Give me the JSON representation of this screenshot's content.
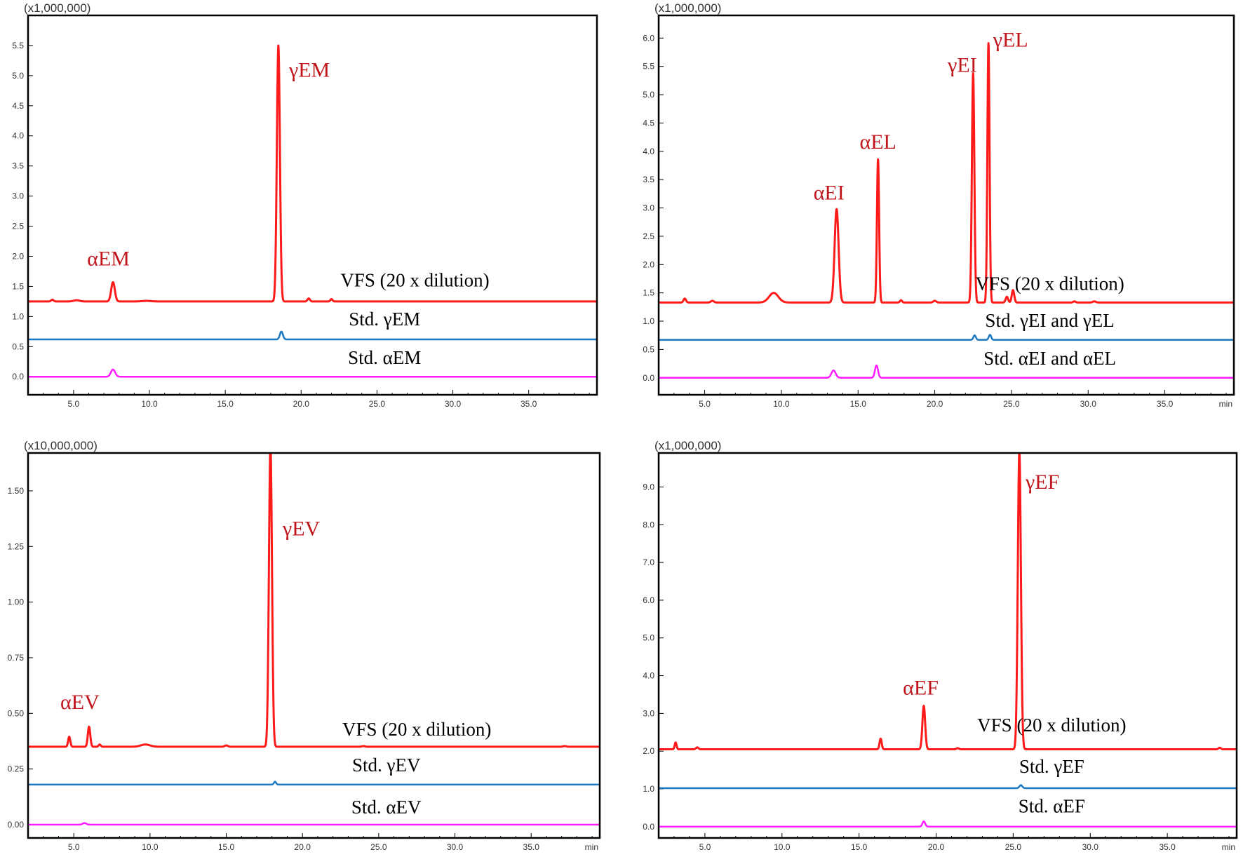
{
  "colors": {
    "vfs": "#ff1a1a",
    "std_gamma": "#1a78c2",
    "std_alpha": "#ff1aff",
    "peak_label": "#c0151b",
    "frame": "#000000"
  },
  "chart_data": [
    {
      "type": "line",
      "panel": "top-left",
      "scale_label": "(x1,000,000)",
      "x_unit": "",
      "xlim": [
        2.0,
        39.5
      ],
      "ylim": [
        -0.3,
        6.0
      ],
      "x_ticks": [
        "5.0",
        "10.0",
        "15.0",
        "20.0",
        "25.0",
        "30.0",
        "35.0"
      ],
      "y_ticks": [
        "0.0",
        "0.5",
        "1.0",
        "1.5",
        "2.0",
        "2.5",
        "3.0",
        "3.5",
        "4.0",
        "4.5",
        "5.0",
        "5.5"
      ],
      "series": [
        {
          "name": "VFS (20 x dilution)",
          "color_key": "vfs",
          "baseline": 1.25,
          "label_pos": [
            27.5,
            1.5
          ],
          "peaks": [
            [
              3.6,
              0.03,
              0.08
            ],
            [
              5.2,
              0.02,
              0.2
            ],
            [
              7.6,
              0.32,
              0.12
            ],
            [
              9.8,
              0.01,
              0.3
            ],
            [
              18.5,
              4.25,
              0.1
            ],
            [
              20.5,
              0.05,
              0.08
            ],
            [
              22.0,
              0.04,
              0.07
            ]
          ]
        },
        {
          "name": "Std. γEM",
          "color_key": "std_gamma",
          "baseline": 0.62,
          "label_pos": [
            25.5,
            0.85
          ],
          "peaks": [
            [
              18.7,
              0.13,
              0.1
            ]
          ]
        },
        {
          "name": "Std. αEM",
          "color_key": "std_alpha",
          "baseline": 0.0,
          "label_pos": [
            25.5,
            0.21
          ],
          "peaks": [
            [
              7.6,
              0.12,
              0.14
            ]
          ]
        }
      ],
      "peak_labels": [
        {
          "text": "αEM",
          "x": 7.3,
          "y": 1.85,
          "anchor": "middle"
        },
        {
          "text": "γEM",
          "x": 19.2,
          "y": 4.98,
          "anchor": "start"
        }
      ]
    },
    {
      "type": "line",
      "panel": "top-right",
      "scale_label": "(x1,000,000)",
      "x_unit": "min",
      "xlim": [
        2.0,
        39.5
      ],
      "ylim": [
        -0.3,
        6.4
      ],
      "x_ticks": [
        "5.0",
        "10.0",
        "15.0",
        "20.0",
        "25.0",
        "30.0",
        "35.0"
      ],
      "y_ticks": [
        "0.0",
        "0.5",
        "1.0",
        "1.5",
        "2.0",
        "2.5",
        "3.0",
        "3.5",
        "4.0",
        "4.5",
        "5.0",
        "5.5",
        "6.0"
      ],
      "series": [
        {
          "name": "VFS (20 x dilution)",
          "color_key": "vfs",
          "baseline": 1.33,
          "label_pos": [
            27.5,
            1.55
          ],
          "peaks": [
            [
              3.7,
              0.07,
              0.08
            ],
            [
              5.5,
              0.03,
              0.1
            ],
            [
              9.5,
              0.17,
              0.3
            ],
            [
              13.6,
              1.65,
              0.13
            ],
            [
              16.3,
              2.53,
              0.07
            ],
            [
              17.8,
              0.04,
              0.07
            ],
            [
              20.0,
              0.03,
              0.1
            ],
            [
              22.5,
              4.05,
              0.08
            ],
            [
              23.5,
              4.58,
              0.07
            ],
            [
              24.7,
              0.1,
              0.08
            ],
            [
              25.1,
              0.22,
              0.08
            ],
            [
              29.1,
              0.02,
              0.08
            ],
            [
              30.4,
              0.02,
              0.1
            ]
          ]
        },
        {
          "name": "Std. γEI and γEL",
          "color_key": "std_gamma",
          "baseline": 0.67,
          "label_pos": [
            27.5,
            0.9
          ],
          "peaks": [
            [
              22.6,
              0.08,
              0.08
            ],
            [
              23.6,
              0.09,
              0.08
            ]
          ]
        },
        {
          "name": "Std. αEI and αEL",
          "color_key": "std_alpha",
          "baseline": 0.0,
          "label_pos": [
            27.5,
            0.23
          ],
          "peaks": [
            [
              13.4,
              0.13,
              0.14
            ],
            [
              16.2,
              0.22,
              0.1
            ]
          ]
        }
      ],
      "peak_labels": [
        {
          "text": "αEI",
          "x": 13.1,
          "y": 3.15,
          "anchor": "middle"
        },
        {
          "text": "αEL",
          "x": 16.3,
          "y": 4.05,
          "anchor": "middle"
        },
        {
          "text": "γEI",
          "x": 21.8,
          "y": 5.4,
          "anchor": "middle"
        },
        {
          "text": "γEL",
          "x": 23.8,
          "y": 5.85,
          "anchor": "start"
        }
      ]
    },
    {
      "type": "line",
      "panel": "bottom-left",
      "scale_label": "(x10,000,000)",
      "x_unit": "min",
      "xlim": [
        2.0,
        39.5
      ],
      "ylim": [
        -0.06,
        1.67
      ],
      "x_ticks": [
        "5.0",
        "10.0",
        "15.0",
        "20.0",
        "25.0",
        "30.0",
        "35.0"
      ],
      "y_ticks": [
        "0.00",
        "0.25",
        "0.50",
        "0.75",
        "1.00",
        "1.25",
        "1.50"
      ],
      "series": [
        {
          "name": "VFS (20 x dilution)",
          "color_key": "vfs",
          "baseline": 0.35,
          "label_pos": [
            27.5,
            0.4
          ],
          "peaks": [
            [
              4.7,
              0.045,
              0.07
            ],
            [
              6.0,
              0.09,
              0.08
            ],
            [
              6.7,
              0.01,
              0.07
            ],
            [
              9.7,
              0.01,
              0.3
            ],
            [
              15.0,
              0.006,
              0.1
            ],
            [
              17.9,
              1.35,
              0.1
            ],
            [
              24.0,
              0.003,
              0.1
            ],
            [
              37.2,
              0.003,
              0.1
            ]
          ]
        },
        {
          "name": "Std. γEV",
          "color_key": "std_gamma",
          "baseline": 0.18,
          "label_pos": [
            25.5,
            0.24
          ],
          "peaks": [
            [
              18.2,
              0.013,
              0.07
            ]
          ]
        },
        {
          "name": "Std. αEV",
          "color_key": "std_alpha",
          "baseline": 0.0,
          "label_pos": [
            25.5,
            0.05
          ],
          "peaks": [
            [
              5.7,
              0.007,
              0.12
            ]
          ]
        }
      ],
      "peak_labels": [
        {
          "text": "αEV",
          "x": 5.4,
          "y": 0.52,
          "anchor": "middle"
        },
        {
          "text": "γEV",
          "x": 18.7,
          "y": 1.3,
          "anchor": "start"
        }
      ]
    },
    {
      "type": "line",
      "panel": "bottom-right",
      "scale_label": "(x1,000,000)",
      "x_unit": "min",
      "xlim": [
        2.0,
        39.5
      ],
      "ylim": [
        -0.3,
        9.9
      ],
      "x_ticks": [
        "5.0",
        "10.0",
        "15.0",
        "20.0",
        "25.0",
        "30.0",
        "35.0"
      ],
      "y_ticks": [
        "0.0",
        "1.0",
        "2.0",
        "3.0",
        "4.0",
        "5.0",
        "6.0",
        "7.0",
        "8.0",
        "9.0"
      ],
      "series": [
        {
          "name": "VFS (20 x dilution)",
          "color_key": "vfs",
          "baseline": 2.05,
          "label_pos": [
            27.5,
            2.52
          ],
          "peaks": [
            [
              3.1,
              0.18,
              0.06
            ],
            [
              4.5,
              0.05,
              0.08
            ],
            [
              16.4,
              0.28,
              0.07
            ],
            [
              19.2,
              1.15,
              0.09
            ],
            [
              21.4,
              0.03,
              0.08
            ],
            [
              25.4,
              7.9,
              0.1
            ],
            [
              38.4,
              0.04,
              0.08
            ]
          ]
        },
        {
          "name": "Std. γEF",
          "color_key": "std_gamma",
          "baseline": 1.02,
          "label_pos": [
            27.5,
            1.43
          ],
          "peaks": [
            [
              25.5,
              0.08,
              0.09
            ]
          ]
        },
        {
          "name": "Std. αEF",
          "color_key": "std_alpha",
          "baseline": 0.0,
          "label_pos": [
            27.5,
            0.38
          ],
          "peaks": [
            [
              19.2,
              0.14,
              0.09
            ]
          ]
        }
      ],
      "peak_labels": [
        {
          "text": "αEF",
          "x": 19.0,
          "y": 3.5,
          "anchor": "middle"
        },
        {
          "text": "γEF",
          "x": 25.8,
          "y": 8.95,
          "anchor": "start"
        }
      ]
    }
  ]
}
